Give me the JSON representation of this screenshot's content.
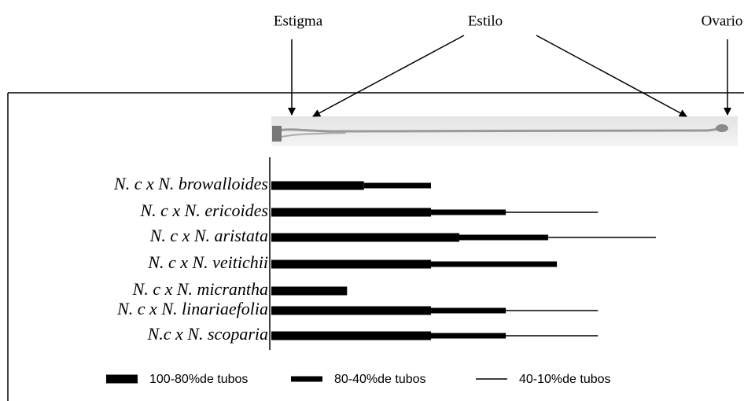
{
  "chart_data": {
    "type": "stacked-bar",
    "orientation": "horizontal",
    "annotations": [
      "Estigma",
      "Estilo",
      "Ovario"
    ],
    "categories": [
      "N. c x N. browalloides",
      "N. c  x N. ericoides",
      "N. c x N. aristata",
      "N. c x N. veitichii",
      "N. c x N. micrantha",
      "N. c x N. linariaefolia",
      "N.c x N. scoparia"
    ],
    "series": [
      {
        "name": "100-80%de tubos",
        "color": "#000000",
        "values": [
          20.3,
          35,
          41.2,
          35,
          16.6,
          35,
          35
        ]
      },
      {
        "name": "80-40%de tubos",
        "color": "#000000",
        "values": [
          14.7,
          16.4,
          19.5,
          27.6,
          null,
          16.4,
          16.4
        ]
      },
      {
        "name": "40-10%de tubos",
        "color": "#000000",
        "values": [
          null,
          20.2,
          23.6,
          null,
          null,
          20.2,
          20.2
        ]
      }
    ],
    "xlim": [
      0,
      100
    ],
    "legend": "bottom"
  }
}
